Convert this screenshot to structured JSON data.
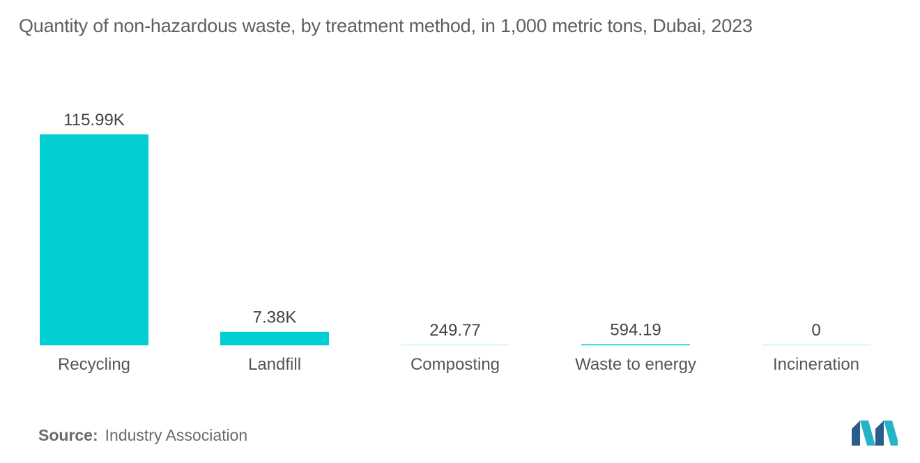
{
  "title": "Quantity of non-hazardous waste, by treatment method, in 1,000 metric tons, Dubai, 2023",
  "source": {
    "label": "Source:",
    "text": "Industry Association"
  },
  "colors": {
    "bar": "#00CED1",
    "text": "#555555"
  },
  "chart_data": {
    "type": "bar",
    "categories": [
      "Recycling",
      "Landfill",
      "Composting",
      "Waste to energy",
      "Incineration"
    ],
    "values": [
      115990,
      7380,
      249.77,
      594.19,
      0
    ],
    "value_labels": [
      "115.99K",
      "7.38K",
      "249.77",
      "594.19",
      "0"
    ],
    "xlabel": "",
    "ylabel": "",
    "ylim": [
      0,
      115990
    ],
    "grid": false,
    "legend": "none"
  }
}
